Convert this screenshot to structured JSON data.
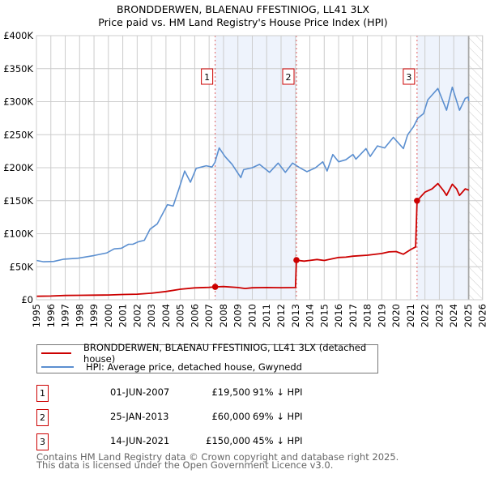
{
  "title": {
    "line1": "BRONDDERWEN, BLAENAU FFESTINIOG, LL41 3LX",
    "line2": "Price paid vs. HM Land Registry's House Price Index (HPI)"
  },
  "chart_data": {
    "type": "line",
    "title": "BRONDDERWEN, BLAENAU FFESTINIOG, LL41 3LX - Price paid vs. HM Land Registry's House Price Index (HPI)",
    "xlabel": "",
    "ylabel": "",
    "xlim": [
      1995,
      2026
    ],
    "ylim": [
      0,
      400000
    ],
    "x_ticks": [
      "1995",
      "1996",
      "1997",
      "1998",
      "1999",
      "2000",
      "2001",
      "2002",
      "2003",
      "2004",
      "2005",
      "2006",
      "2007",
      "2008",
      "2009",
      "2010",
      "2011",
      "2012",
      "2013",
      "2014",
      "2015",
      "2016",
      "2017",
      "2018",
      "2019",
      "2020",
      "2021",
      "2022",
      "2023",
      "2024",
      "2025",
      "2026"
    ],
    "y_ticks": [
      {
        "v": 0,
        "label": "£0"
      },
      {
        "v": 50000,
        "label": "£50K"
      },
      {
        "v": 100000,
        "label": "£100K"
      },
      {
        "v": 150000,
        "label": "£150K"
      },
      {
        "v": 200000,
        "label": "£200K"
      },
      {
        "v": 250000,
        "label": "£250K"
      },
      {
        "v": 300000,
        "label": "£300K"
      },
      {
        "v": 350000,
        "label": "£350K"
      },
      {
        "v": 400000,
        "label": "£400K"
      }
    ],
    "grid": true,
    "legend_placement": "below",
    "shaded_regions": [
      [
        2007.42,
        2013.07
      ],
      [
        2021.45,
        2025.0
      ]
    ],
    "hatched_from": 2025.05,
    "colors": {
      "property": "#cc0000",
      "hpi": "#5b8fd0",
      "shade": "#eef3fc"
    },
    "series": [
      {
        "name": "BRONDDERWEN, BLAENAU FFESTINIOG, LL41 3LX (detached house)",
        "color": "#cc0000",
        "x": [
          1995,
          1996,
          1997,
          1998,
          1999,
          2000,
          2001,
          2002,
          2003,
          2004,
          2005,
          2006,
          2007,
          2007.42,
          2008,
          2009,
          2009.5,
          2010,
          2011,
          2012,
          2013.0,
          2013.07,
          2013.6,
          2014.5,
          2015,
          2016,
          2016.5,
          2017,
          2018,
          2019,
          2019.5,
          2020,
          2020.5,
          2021,
          2021.35,
          2021.45,
          2022,
          2022.5,
          2022.9,
          2023.3,
          2023.5,
          2023.9,
          2024.2,
          2024.4,
          2024.8,
          2025.05
        ],
        "y": [
          5300,
          5600,
          6500,
          6800,
          7000,
          7200,
          8000,
          8500,
          10000,
          12500,
          16000,
          18000,
          18800,
          19500,
          20000,
          18500,
          17000,
          18200,
          18500,
          18300,
          18500,
          60000,
          58500,
          61000,
          59500,
          64000,
          64500,
          66000,
          67500,
          70000,
          72500,
          73000,
          69000,
          76000,
          80000,
          150000,
          163000,
          168000,
          176000,
          165000,
          158000,
          175000,
          168000,
          158000,
          168000,
          166000
        ]
      },
      {
        "name": "HPI: Average price, detached house, Gwynedd",
        "color": "#5b8fd0",
        "x": [
          1995,
          1995.5,
          1996.2,
          1996.9,
          1997.9,
          1999,
          1999.9,
          2000.4,
          2000.9,
          2001.4,
          2001.7,
          2002.1,
          2002.5,
          2002.9,
          2003.4,
          2004.1,
          2004.5,
          2004.9,
          2005.3,
          2005.7,
          2006.1,
          2006.8,
          2007.2,
          2007.4,
          2007.7,
          2008.1,
          2008.6,
          2009.2,
          2009.4,
          2010,
          2010.5,
          2011.2,
          2011.8,
          2012.3,
          2012.8,
          2013.3,
          2013.8,
          2014.4,
          2014.9,
          2015.2,
          2015.6,
          2016,
          2016.5,
          2017,
          2017.2,
          2017.9,
          2018.2,
          2018.7,
          2019.2,
          2019.8,
          2020.5,
          2020.8,
          2021.2,
          2021.5,
          2021.9,
          2022.2,
          2022.9,
          2023.5,
          2023.9,
          2024.4,
          2024.8,
          2025.0,
          2025.05
        ],
        "y": [
          59500,
          57500,
          58000,
          61500,
          63000,
          67000,
          71000,
          77000,
          78000,
          84000,
          84000,
          88000,
          90000,
          107000,
          115000,
          144000,
          142000,
          168000,
          195000,
          178000,
          199000,
          203000,
          201000,
          208000,
          230000,
          217000,
          205000,
          185000,
          197000,
          200000,
          205000,
          193000,
          207000,
          193000,
          207000,
          200000,
          194000,
          200000,
          209000,
          195000,
          220000,
          209000,
          212000,
          220000,
          213000,
          229000,
          217000,
          233000,
          230000,
          246000,
          229000,
          250000,
          262000,
          275000,
          282000,
          303000,
          320000,
          287000,
          322000,
          287000,
          305000,
          307000,
          301000
        ]
      }
    ],
    "markers": [
      {
        "label": "1",
        "x": 2007.42,
        "y": 19500
      },
      {
        "label": "2",
        "x": 2013.07,
        "y": 60000
      },
      {
        "label": "3",
        "x": 2021.45,
        "y": 150000
      }
    ]
  },
  "legend": {
    "property": "BRONDDERWEN, BLAENAU FFESTINIOG, LL41 3LX (detached house)",
    "hpi": "HPI: Average price, detached house, Gwynedd"
  },
  "sales": [
    {
      "num": "1",
      "date": "01-JUN-2007",
      "price": "£19,500",
      "hpi": "91% ↓ HPI"
    },
    {
      "num": "2",
      "date": "25-JAN-2013",
      "price": "£60,000",
      "hpi": "69% ↓ HPI"
    },
    {
      "num": "3",
      "date": "14-JUN-2021",
      "price": "£150,000",
      "hpi": "45% ↓ HPI"
    }
  ],
  "footer": {
    "line1": "Contains HM Land Registry data © Crown copyright and database right 2025.",
    "line2": "This data is licensed under the Open Government Licence v3.0."
  }
}
